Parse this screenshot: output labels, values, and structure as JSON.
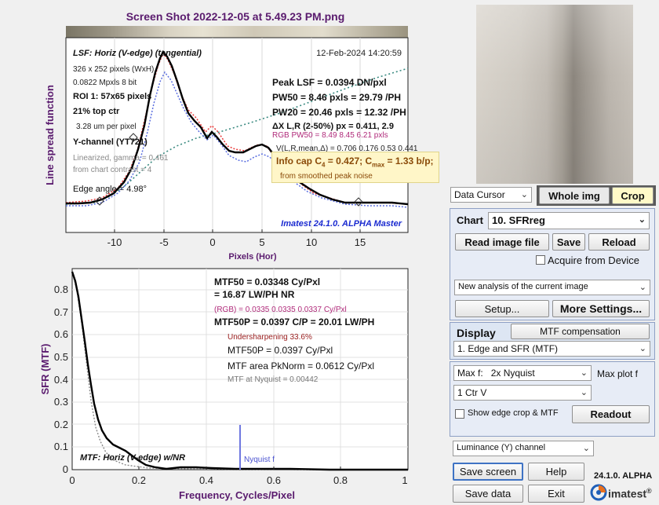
{
  "window_title": "Screen Shot 2022-12-05 at 5.49.23 PM.png",
  "lsf_plot": {
    "title": "LSF: Horiz (V-edge) (tangential)",
    "timestamp": "12-Feb-2024 14:20:59",
    "size": "326 x 252 pixels (WxH)",
    "mpxls": "0.0822 Mpxls   8 bit",
    "roi": "ROI 1:  57x65 pixels",
    "top_ctr": "21% top ctr",
    "um_per_pixel": "3.28 um per pixel",
    "channel": "Y-channel  (YT721)",
    "gamma": "Linearized, gamma = 0.461",
    "contrast": "from chart contrast = 4",
    "edge_angle": "Edge angle = 4.98°",
    "peak_lsf": "Peak LSF = 0.0394 DN/pxl",
    "pw50": "PW50 = 8.46 pxls = 29.79 /PH",
    "pw20": "PW20 = 20.46 pxls = 12.32 /PH",
    "delta_x": "ΔX L,R (2-50%) px = 0.411, 2.9",
    "rgb_pw50": "RGB PW50 =   8.49    8.45    6.21 pxls",
    "v_stats": "V(L,R,mean,Δ) = 0.706  0.176  0.53  0.441",
    "info_cap_prefix": "Info cap C",
    "info_cap_sub": "4",
    "info_cap_mid": " = 0.427;  C",
    "info_cap_sub2": "max",
    "info_cap_suffix": " = 1.33 b/p;",
    "info_cap_note": "from smoothed peak noise",
    "version": "Imatest 24.1.0. ALPHA Master",
    "ylabel": "Line spread function",
    "xlabel": "Pixels (Hor)",
    "x_ticks": [
      "-10",
      "-5",
      "0",
      "5",
      "10",
      "15"
    ]
  },
  "sfr_plot": {
    "mtf50": "MTF50 = 0.03348 Cy/Pxl",
    "mtf50_lw": "= 16.87 LW/PH  NR",
    "rgb": "(RGB) = 0.0335  0.0335  0.0337 Cy/Pxl",
    "mtf50p": "MTF50P = 0.0397 C/P = 20.01 LW/PH",
    "undersharpening": "Undersharpening 33.6%",
    "mtf50p_cy": "MTF50P = 0.0397 Cy/Pxl",
    "mtf_area": "MTF area PkNorm = 0.0612 Cy/Pxl",
    "mtf_nyquist": "MTF at Nyquist = 0.00442",
    "nyquist_label": "Nyquist f",
    "curve_label": "MTF: Horiz (V-edge) w/NR",
    "ylabel": "SFR (MTF)",
    "xlabel": "Frequency, Cycles/Pixel",
    "y_ticks": [
      "0",
      "0.1",
      "0.2",
      "0.3",
      "0.4",
      "0.5",
      "0.6",
      "0.7",
      "0.8"
    ],
    "x_ticks": [
      "0",
      "0.2",
      "0.4",
      "0.6",
      "0.8",
      "1"
    ]
  },
  "controls": {
    "data_cursor": "Data Cursor",
    "whole_img": "Whole img",
    "crop": "Crop",
    "chart_label": "Chart",
    "chart_value": "10. SFRreg",
    "read_image_file": "Read image file",
    "save": "Save",
    "reload": "Reload",
    "acquire": "Acquire from Device",
    "analysis_select": "New analysis of the current image",
    "setup": "Setup...",
    "more_settings": "More Settings...",
    "display_label": "Display",
    "mtf_compensation": "MTF compensation",
    "display_select": "1. Edge and SFR (MTF)",
    "max_f_label": "Max f:",
    "max_f_value": "2x Nyquist",
    "max_plot_f": "Max plot f",
    "ctr_value": "1 Ctr  V",
    "show_edge_crop": "Show edge crop & MTF",
    "readout": "Readout",
    "channel_select": "Luminance (Y) channel",
    "save_screen": "Save screen",
    "help": "Help",
    "version": "24.1.0. ALPHA",
    "save_data": "Save data",
    "exit": "Exit",
    "logo": "imatest"
  }
}
